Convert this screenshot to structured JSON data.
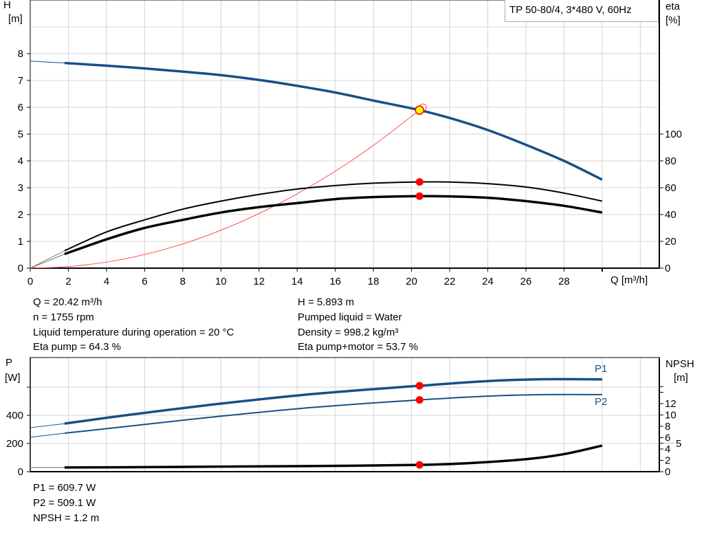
{
  "chart_data": [
    {
      "type": "line",
      "title": "TP 50-80/4, 3*480 V, 60Hz",
      "xlabel": "Q [m³/h]",
      "ylabel": "H\n[m]",
      "ylabel_line1": "H",
      "ylabel_line2": "[m]",
      "y2label_line1": "eta",
      "y2label_line2": "[%]",
      "xlim": [
        0,
        33
      ],
      "ylim": [
        0,
        10
      ],
      "y2lim": [
        0,
        200
      ],
      "x_ticks": [
        0,
        2,
        4,
        6,
        8,
        10,
        12,
        14,
        16,
        18,
        20,
        22,
        24,
        26,
        28
      ],
      "y_ticks": [
        0,
        1,
        2,
        3,
        4,
        5,
        6,
        7,
        8
      ],
      "y2_ticks": [
        0,
        20,
        40,
        60,
        80,
        100
      ],
      "grid": true,
      "legend": "top-right",
      "colors": {
        "head": "#174f86",
        "eta": "#000000",
        "system": "#ff5050",
        "duty_point": "#ffff00",
        "marker": "#ff0000"
      },
      "series": [
        {
          "key": "head",
          "axis": "left",
          "x": [
            1.8,
            4,
            6,
            8,
            10,
            12,
            14,
            16,
            18,
            20.42,
            22,
            24,
            26,
            28,
            30
          ],
          "y": [
            7.65,
            7.55,
            7.45,
            7.33,
            7.2,
            7.02,
            6.8,
            6.55,
            6.25,
            5.893,
            5.6,
            5.15,
            4.6,
            4.0,
            3.3
          ],
          "extrapolate_to_zero": 7.72
        },
        {
          "key": "eta_pump",
          "axis": "right",
          "x": [
            1.8,
            4,
            6,
            8,
            10,
            12,
            14,
            16,
            18,
            20.42,
            22,
            24,
            26,
            28,
            30
          ],
          "y": [
            13,
            27,
            36,
            44,
            50,
            55,
            59,
            61.6,
            63.4,
            64.3,
            64.2,
            63,
            60.5,
            56,
            50
          ],
          "extrapolate_to_zero": 0
        },
        {
          "key": "eta_pump_motor",
          "axis": "right",
          "x": [
            1.8,
            4,
            6,
            8,
            10,
            12,
            14,
            16,
            18,
            20.42,
            22,
            24,
            26,
            28,
            30
          ],
          "y": [
            10.5,
            21.5,
            30,
            36,
            41.5,
            45.5,
            48.5,
            51.5,
            53,
            53.7,
            53.5,
            52.5,
            50,
            46.5,
            41.5
          ],
          "extrapolate_to_zero": 0
        },
        {
          "key": "system",
          "axis": "left",
          "x": [
            0,
            2,
            4,
            6,
            8,
            10,
            12,
            14,
            16,
            18,
            20.42
          ],
          "y": [
            0,
            0.057,
            0.226,
            0.509,
            0.904,
            1.413,
            2.035,
            2.77,
            3.618,
            4.579,
            5.893
          ]
        }
      ],
      "duty_point": {
        "x": 20.42,
        "y": 5.893
      }
    },
    {
      "type": "line",
      "ylabel_line1": "P",
      "ylabel_line2": "[W]",
      "y2label_line1": "NPSH",
      "y2label_line2": "[m]",
      "xlim": [
        0,
        33
      ],
      "ylim": [
        0,
        810
      ],
      "y_ticks": [
        0,
        200,
        400
      ],
      "y_grid": [
        200,
        400,
        600
      ],
      "y2_ticks": [
        0,
        2,
        4,
        5,
        6,
        8,
        10,
        12
      ],
      "y2_minor_ticks": [
        14,
        15
      ],
      "y2_per_m": 8.25,
      "grid": true,
      "colors": {
        "power": "#174f86",
        "npsh": "#000000",
        "marker": "#ff0000"
      },
      "series": [
        {
          "name": "P1",
          "axis": "left",
          "x": [
            1.8,
            5,
            10,
            15,
            20.42,
            24,
            27,
            30
          ],
          "y": [
            341,
            400,
            483,
            553,
            609.7,
            643,
            656,
            655
          ],
          "extrapolate_to_zero": 312
        },
        {
          "name": "P2",
          "axis": "left",
          "x": [
            1.8,
            5,
            10,
            15,
            20.42,
            24,
            27,
            30
          ],
          "y": [
            273,
            320,
            394,
            458,
            509.1,
            536,
            547,
            547
          ],
          "extrapolate_to_zero": 244
        },
        {
          "key": "npsh",
          "axis": "right",
          "x": [
            1.8,
            6,
            10,
            15,
            20.42,
            23,
            26,
            28,
            30
          ],
          "y": [
            0.75,
            0.8,
            0.9,
            1.0,
            1.2,
            1.5,
            2.2,
            3.1,
            4.6
          ],
          "extrapolate_to_zero": 0.75
        }
      ],
      "duty_x": 20.42
    }
  ],
  "info_top": {
    "left": [
      "Q = 20.42 m³/h",
      "n = 1755 rpm",
      "Liquid temperature during operation = 20 °C",
      "Eta pump = 64.3 %"
    ],
    "right": [
      "H = 5.893 m",
      "Pumped liquid = Water",
      "Density = 998.2 kg/m³",
      "Eta pump+motor = 53.7 %"
    ]
  },
  "info_bottom": [
    "P1 = 609.7 W",
    "P2 = 509.1 W",
    "NPSH = 1.2 m"
  ]
}
